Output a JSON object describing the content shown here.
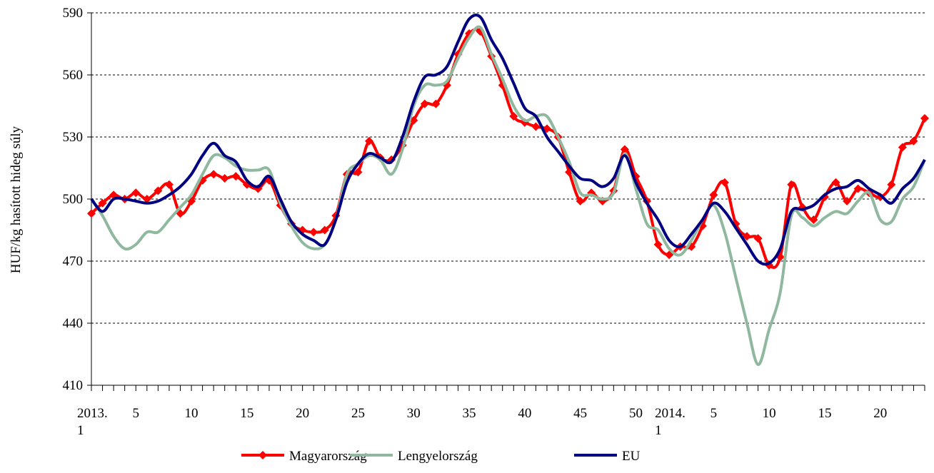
{
  "chart_data": {
    "type": "line",
    "ylabel": "HUF/kg hasított hideg súly",
    "categories": [
      "2013.\n1",
      null,
      null,
      null,
      "5",
      null,
      null,
      null,
      null,
      "10",
      null,
      null,
      null,
      null,
      "15",
      null,
      null,
      null,
      null,
      "20",
      null,
      null,
      null,
      null,
      "25",
      null,
      null,
      null,
      null,
      "30",
      null,
      null,
      null,
      null,
      "35",
      null,
      null,
      null,
      null,
      "40",
      null,
      null,
      null,
      null,
      "45",
      null,
      null,
      null,
      null,
      "50",
      null,
      null,
      "2014.\n1",
      null,
      null,
      null,
      "5",
      null,
      null,
      null,
      null,
      "10",
      null,
      null,
      null,
      null,
      "15",
      null,
      null,
      null,
      null,
      "20",
      null,
      null,
      null,
      null
    ],
    "series": [
      {
        "name": "Magyarország",
        "color": "#ff0000",
        "marker": "diamond",
        "values": [
          493,
          498,
          502,
          500,
          503,
          500,
          504,
          507,
          493,
          499,
          509,
          512,
          510,
          511,
          507,
          505,
          509,
          497,
          488,
          485,
          484,
          485,
          492,
          512,
          513,
          528,
          520,
          519,
          526,
          538,
          546,
          546,
          555,
          570,
          580,
          581,
          569,
          555,
          540,
          537,
          535,
          534,
          530,
          513,
          499,
          503,
          499,
          504,
          524,
          511,
          499,
          478,
          473,
          477,
          477,
          487,
          502,
          508,
          488,
          482,
          481,
          468,
          472,
          507,
          496,
          490,
          501,
          508,
          499,
          505,
          503,
          501,
          507,
          525,
          528,
          539
        ]
      },
      {
        "name": "Lengyelország",
        "color": "#8fb89f",
        "values": [
          500,
          492,
          482,
          476,
          478,
          484,
          484,
          490,
          496,
          502,
          512,
          521,
          520,
          516,
          514,
          514,
          514,
          498,
          487,
          479,
          476,
          478,
          490,
          512,
          517,
          521,
          519,
          512,
          524,
          545,
          555,
          555,
          557,
          568,
          578,
          583,
          570,
          558,
          545,
          538,
          540,
          540,
          530,
          518,
          503,
          502,
          500,
          503,
          522,
          505,
          488,
          485,
          476,
          473,
          480,
          490,
          497,
          484,
          462,
          440,
          420,
          437,
          455,
          492,
          491,
          487,
          491,
          494,
          493,
          499,
          503,
          490,
          489,
          500,
          506,
          519
        ]
      },
      {
        "name": "EU",
        "color": "#000080",
        "values": [
          500,
          494,
          500,
          500,
          499,
          498,
          499,
          502,
          506,
          512,
          521,
          527,
          521,
          518,
          509,
          506,
          511,
          500,
          489,
          483,
          480,
          478,
          490,
          508,
          517,
          522,
          520,
          518,
          530,
          547,
          559,
          560,
          564,
          576,
          587,
          588,
          577,
          568,
          556,
          544,
          540,
          530,
          523,
          516,
          510,
          509,
          506,
          510,
          521,
          508,
          498,
          490,
          480,
          477,
          483,
          490,
          498,
          494,
          486,
          478,
          470,
          469,
          476,
          494,
          495,
          497,
          502,
          505,
          506,
          509,
          505,
          502,
          498,
          505,
          510,
          519
        ]
      }
    ],
    "ylim": [
      410,
      590
    ],
    "yticks": [
      410,
      440,
      470,
      500,
      530,
      560,
      590
    ],
    "grid": true,
    "legend": "bottom"
  }
}
